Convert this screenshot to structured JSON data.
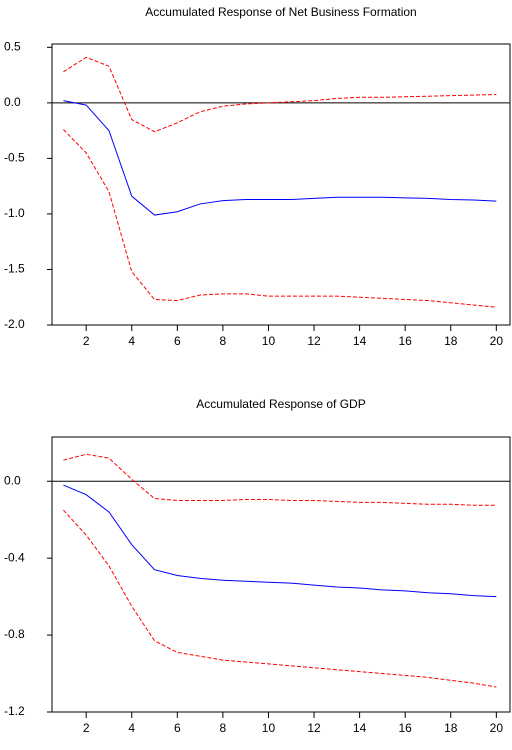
{
  "chart_data": [
    {
      "type": "line",
      "title": "Accumulated Response of Net Business Formation",
      "x": [
        1,
        2,
        3,
        4,
        5,
        6,
        7,
        8,
        9,
        10,
        11,
        12,
        13,
        14,
        15,
        16,
        17,
        18,
        19,
        20
      ],
      "series": [
        {
          "color": "#0000ff",
          "dashed": false,
          "values": [
            0.02,
            -0.02,
            -0.25,
            -0.84,
            -1.01,
            -0.98,
            -0.91,
            -0.88,
            -0.87,
            -0.87,
            -0.87,
            -0.86,
            -0.85,
            -0.85,
            -0.85,
            -0.855,
            -0.86,
            -0.87,
            -0.875,
            -0.885
          ]
        },
        {
          "color": "#ff0000",
          "dashed": true,
          "values": [
            0.28,
            0.41,
            0.33,
            -0.15,
            -0.26,
            -0.18,
            -0.08,
            -0.03,
            -0.01,
            0.0,
            0.01,
            0.02,
            0.04,
            0.05,
            0.05,
            0.055,
            0.06,
            0.065,
            0.07,
            0.075
          ]
        },
        {
          "color": "#ff0000",
          "dashed": true,
          "values": [
            -0.24,
            -0.45,
            -0.8,
            -1.52,
            -1.77,
            -1.78,
            -1.73,
            -1.72,
            -1.72,
            -1.74,
            -1.74,
            -1.74,
            -1.74,
            -1.75,
            -1.76,
            -1.77,
            -1.78,
            -1.8,
            -1.82,
            -1.84
          ]
        }
      ],
      "xlim": [
        0.5,
        20.6
      ],
      "xticks": [
        2,
        4,
        6,
        8,
        10,
        12,
        14,
        16,
        18,
        20
      ],
      "ylim": [
        -2.0,
        0.53
      ],
      "yticks": [
        0.5,
        {
          "value": 0,
          "label": "0.0"
        },
        -0.5,
        {
          "value": -1,
          "label": "-1.0"
        },
        -1.5,
        {
          "value": -2,
          "label": "-2.0"
        }
      ],
      "zero_line": true
    },
    {
      "type": "line",
      "title": "Accumulated Response of GDP",
      "x": [
        1,
        2,
        3,
        4,
        5,
        6,
        7,
        8,
        9,
        10,
        11,
        12,
        13,
        14,
        15,
        16,
        17,
        18,
        19,
        20
      ],
      "series": [
        {
          "color": "#0000ff",
          "dashed": false,
          "values": [
            -0.02,
            -0.07,
            -0.16,
            -0.33,
            -0.46,
            -0.49,
            -0.505,
            -0.515,
            -0.52,
            -0.525,
            -0.53,
            -0.54,
            -0.55,
            -0.555,
            -0.565,
            -0.57,
            -0.58,
            -0.585,
            -0.595,
            -0.6
          ]
        },
        {
          "color": "#ff0000",
          "dashed": true,
          "values": [
            0.11,
            0.14,
            0.12,
            0.01,
            -0.09,
            -0.1,
            -0.1,
            -0.1,
            -0.095,
            -0.095,
            -0.1,
            -0.1,
            -0.105,
            -0.11,
            -0.11,
            -0.115,
            -0.12,
            -0.12,
            -0.125,
            -0.125
          ]
        },
        {
          "color": "#ff0000",
          "dashed": true,
          "values": [
            -0.15,
            -0.28,
            -0.44,
            -0.65,
            -0.83,
            -0.89,
            -0.91,
            -0.93,
            -0.94,
            -0.95,
            -0.96,
            -0.97,
            -0.98,
            -0.99,
            -1.0,
            -1.01,
            -1.02,
            -1.035,
            -1.05,
            -1.07
          ]
        }
      ],
      "xlim": [
        0.5,
        20.6
      ],
      "xticks": [
        2,
        4,
        6,
        8,
        10,
        12,
        14,
        16,
        18,
        20
      ],
      "ylim": [
        -1.2,
        0.23
      ],
      "yticks": [
        {
          "value": 0,
          "label": "0.0"
        },
        -0.4,
        -0.8,
        -1.2
      ],
      "zero_line": true
    }
  ]
}
